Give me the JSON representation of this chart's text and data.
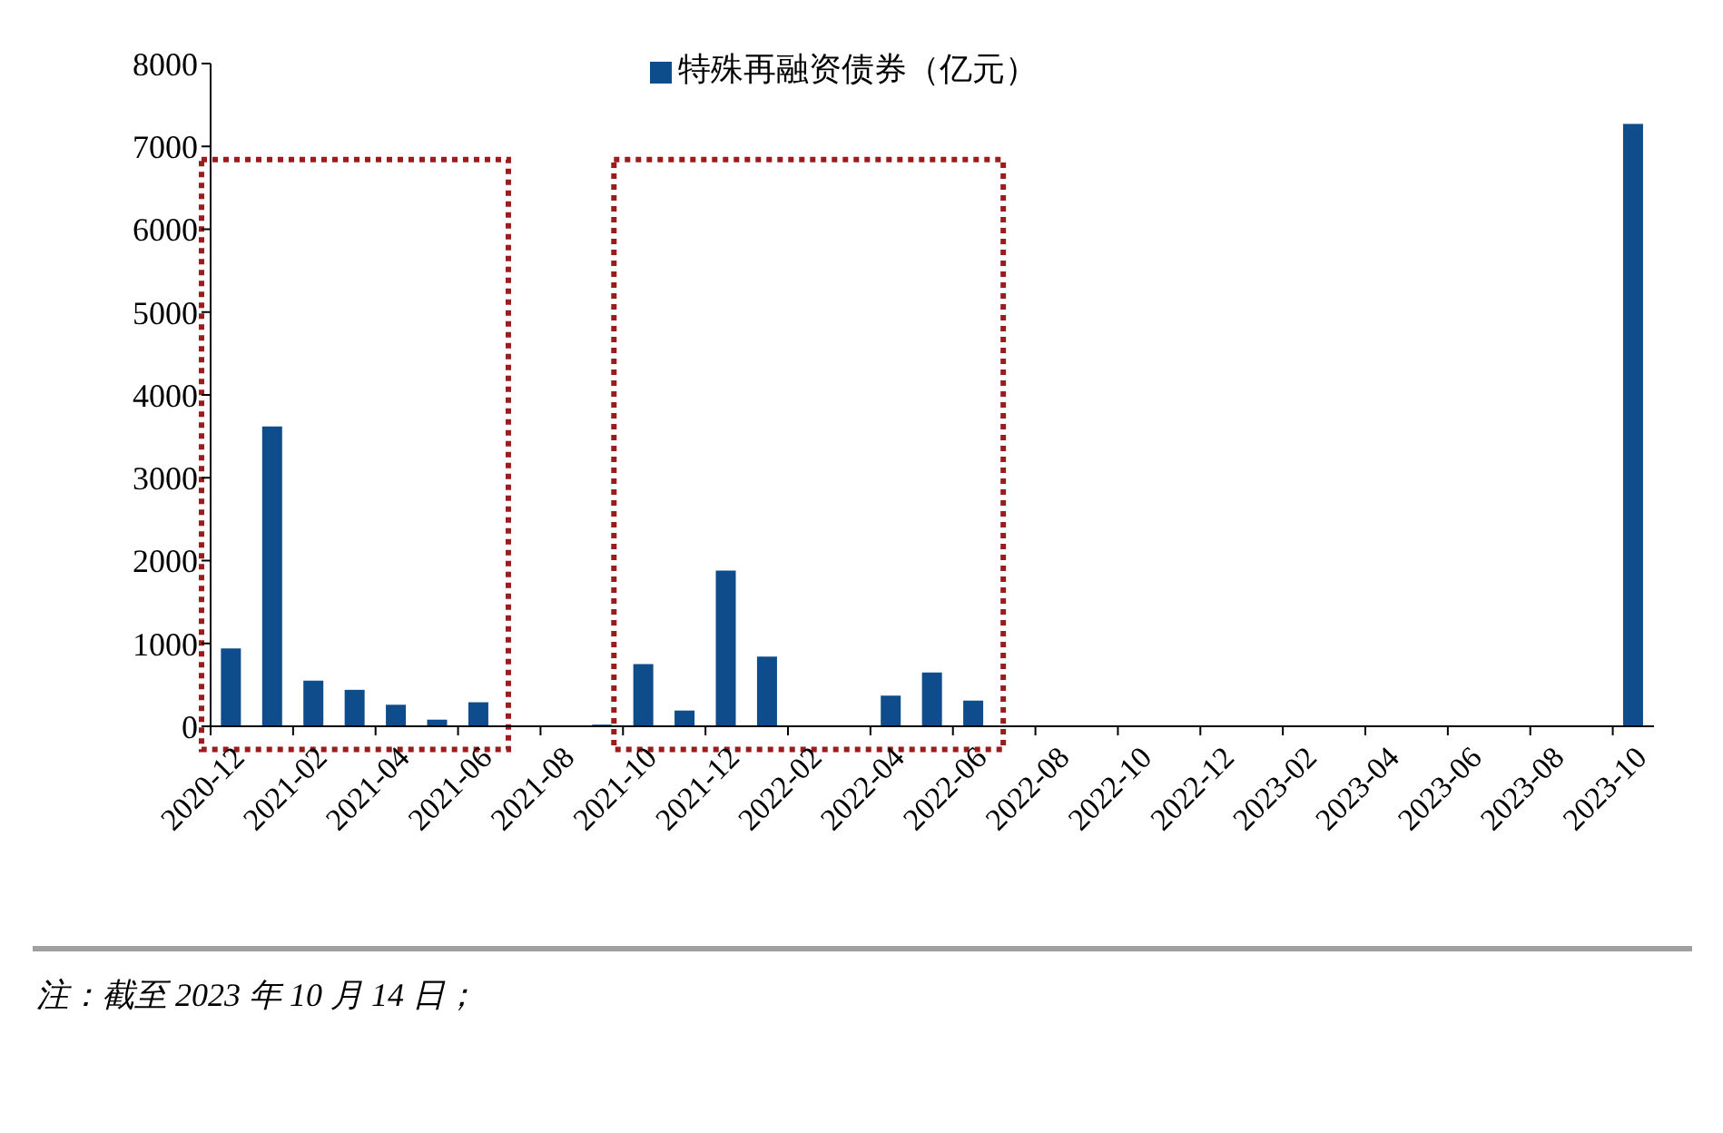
{
  "chart_data": {
    "type": "bar",
    "categories": [
      "2020-12",
      null,
      "2021-02",
      null,
      "2021-04",
      null,
      "2021-06",
      null,
      "2021-08",
      null,
      "2021-10",
      null,
      "2021-12",
      null,
      "2022-02",
      null,
      "2022-04",
      null,
      "2022-06",
      null,
      "2022-08",
      null,
      "2022-10",
      null,
      "2022-12",
      null,
      "2023-02",
      null,
      "2023-04",
      null,
      "2023-06",
      null,
      "2023-08",
      null,
      "2023-10"
    ],
    "series": [
      {
        "name": "特殊再融资债券（亿元）",
        "color": "#0e4c8c",
        "values": [
          940,
          3620,
          550,
          440,
          260,
          80,
          290,
          0,
          0,
          20,
          750,
          190,
          1880,
          840,
          0,
          0,
          370,
          650,
          310,
          0,
          0,
          0,
          0,
          0,
          0,
          0,
          0,
          0,
          0,
          0,
          0,
          0,
          0,
          0,
          7270
        ]
      }
    ],
    "ylim": [
      0,
      8000
    ],
    "yticks": [
      0,
      1000,
      2000,
      3000,
      4000,
      5000,
      6000,
      7000,
      8000
    ],
    "legend": "top",
    "annotations": [
      "注：截至 2023 年 10 月 14 日；"
    ]
  }
}
